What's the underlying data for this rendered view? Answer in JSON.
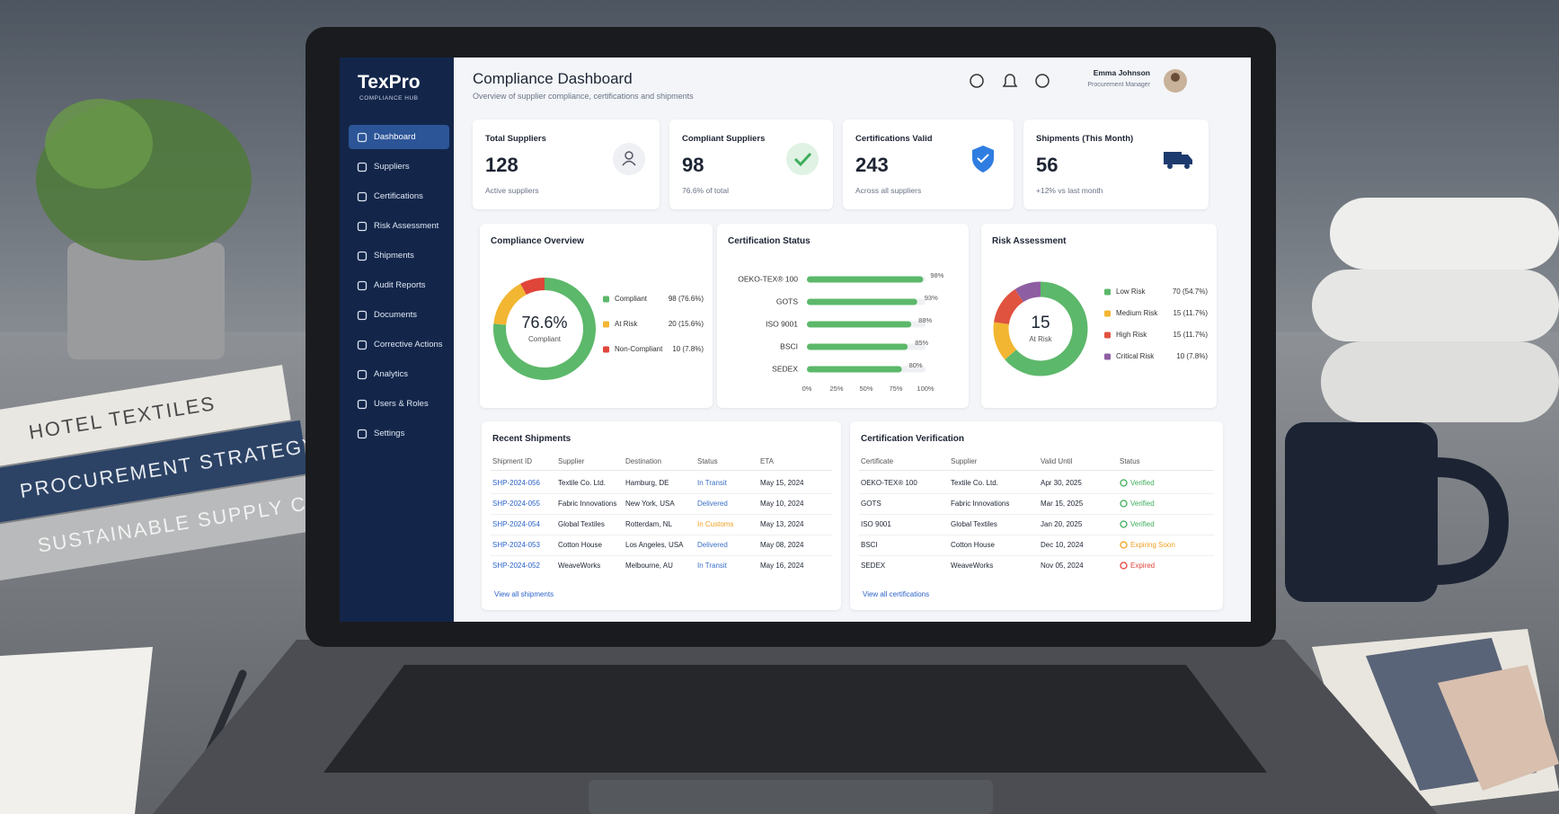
{
  "app": {
    "brand": {
      "name": "TexPro",
      "tagline": "COMPLIANCE HUB"
    },
    "nav": [
      "Dashboard",
      "Suppliers",
      "Certifications",
      "Risk Assessment",
      "Shipments",
      "Audit Reports",
      "Documents",
      "Corrective Actions",
      "Analytics",
      "Users & Roles",
      "Settings"
    ],
    "header": {
      "title": "Compliance Dashboard",
      "subtitle": "Overview of supplier compliance, certifications and shipments"
    },
    "user": {
      "name": "Emma Johnson",
      "role": "Procurement Manager"
    },
    "kpis": [
      {
        "label": "Total Suppliers",
        "value": 128,
        "note": "Active suppliers"
      },
      {
        "label": "Compliant Suppliers",
        "value": 98,
        "note": "76.6% of total"
      },
      {
        "label": "Certifications Valid",
        "value": 243,
        "note": "Across all suppliers"
      },
      {
        "label": "Shipments (This Month)",
        "value": 56,
        "note": "+12% vs last month"
      }
    ],
    "shipments": {
      "title": "Recent Shipments",
      "columns": [
        "Shipment ID",
        "Supplier",
        "Destination",
        "Status",
        "ETA"
      ],
      "rows": [
        [
          "SHP-2024-056",
          "Textile Co. Ltd.",
          "Hamburg, DE",
          "In Transit",
          "May 15, 2024"
        ],
        [
          "SHP-2024-055",
          "Fabric Innovations",
          "New York, USA",
          "Delivered",
          "May 10, 2024"
        ],
        [
          "SHP-2024-054",
          "Global Textiles",
          "Rotterdam, NL",
          "In Customs",
          "May 13, 2024"
        ],
        [
          "SHP-2024-053",
          "Cotton House",
          "Los Angeles, USA",
          "Delivered",
          "May 08, 2024"
        ],
        [
          "SHP-2024-052",
          "WeaveWorks",
          "Melbourne, AU",
          "In Transit",
          "May 16, 2024"
        ]
      ],
      "status_colors": [
        "#3a6fc4",
        "#3a6fc4",
        "#f0a020",
        "#3a6fc4",
        "#3a6fc4"
      ],
      "link": "View all shipments"
    },
    "certifications": {
      "title": "Certification Verification",
      "columns": [
        "Certificate",
        "Supplier",
        "Valid Until",
        "Status"
      ],
      "rows": [
        [
          "OEKO-TEX® 100",
          "Textile Co. Ltd.",
          "Apr 30, 2025",
          "Verified"
        ],
        [
          "GOTS",
          "Fabric Innovations",
          "Mar 15, 2025",
          "Verified"
        ],
        [
          "ISO 9001",
          "Global Textiles",
          "Jan 20, 2025",
          "Verified"
        ],
        [
          "BSCI",
          "Cotton House",
          "Dec 10, 2024",
          "Expiring Soon"
        ],
        [
          "SEDEX",
          "WeaveWorks",
          "Nov 05, 2024",
          "Expired"
        ]
      ],
      "status_colors": [
        "#3fae5a",
        "#3fae5a",
        "#3fae5a",
        "#f0a020",
        "#e0453a"
      ],
      "link": "View all certifications"
    }
  },
  "props": {
    "books": [
      "HOTEL TEXTILES",
      "PROCUREMENT STRATEGY",
      "SUSTAINABLE SUPPLY CHAIN"
    ]
  },
  "chart_data": [
    {
      "type": "donut",
      "title": "Compliance Overview",
      "categories": [
        "Compliant",
        "At Risk",
        "Non-Compliant"
      ],
      "values": [
        76.6,
        15.6,
        7.8
      ],
      "value_labels": [
        "98 (76.6%)",
        "20 (15.6%)",
        "10 (7.8%)"
      ],
      "colors": [
        "#5cb86a",
        "#f2b632",
        "#e0453a"
      ],
      "center_label": "76.6%",
      "center_sublabel": "Compliant"
    },
    {
      "type": "hbar",
      "title": "Certification Status",
      "categories": [
        "OEKO-TEX® 100",
        "GOTS",
        "ISO 9001",
        "BSCI",
        "SEDEX"
      ],
      "values": [
        98,
        93,
        88,
        85,
        80
      ],
      "value_labels": [
        "98%",
        "93%",
        "88%",
        "85%",
        "80%"
      ],
      "color": "#5cb86a",
      "xlim": [
        0,
        100
      ],
      "xticks": [
        {
          "value": 0,
          "label": "0%"
        },
        {
          "value": 25,
          "label": "25%"
        },
        {
          "value": 50,
          "label": "50%"
        },
        {
          "value": 75,
          "label": "75%"
        },
        {
          "value": 100,
          "label": "100%"
        }
      ]
    },
    {
      "type": "donut",
      "title": "Risk Assessment",
      "categories": [
        "Low Risk",
        "Medium Risk",
        "High Risk",
        "Critical Risk"
      ],
      "values": [
        54.7,
        11.7,
        11.7,
        7.8
      ],
      "value_labels": [
        "70 (54.7%)",
        "15 (11.7%)",
        "15 (11.7%)",
        "10 (7.8%)"
      ],
      "colors": [
        "#5cb86a",
        "#f2b632",
        "#e0533f",
        "#8e5ea2"
      ],
      "center_label": "15",
      "center_sublabel": "At Risk"
    }
  ]
}
